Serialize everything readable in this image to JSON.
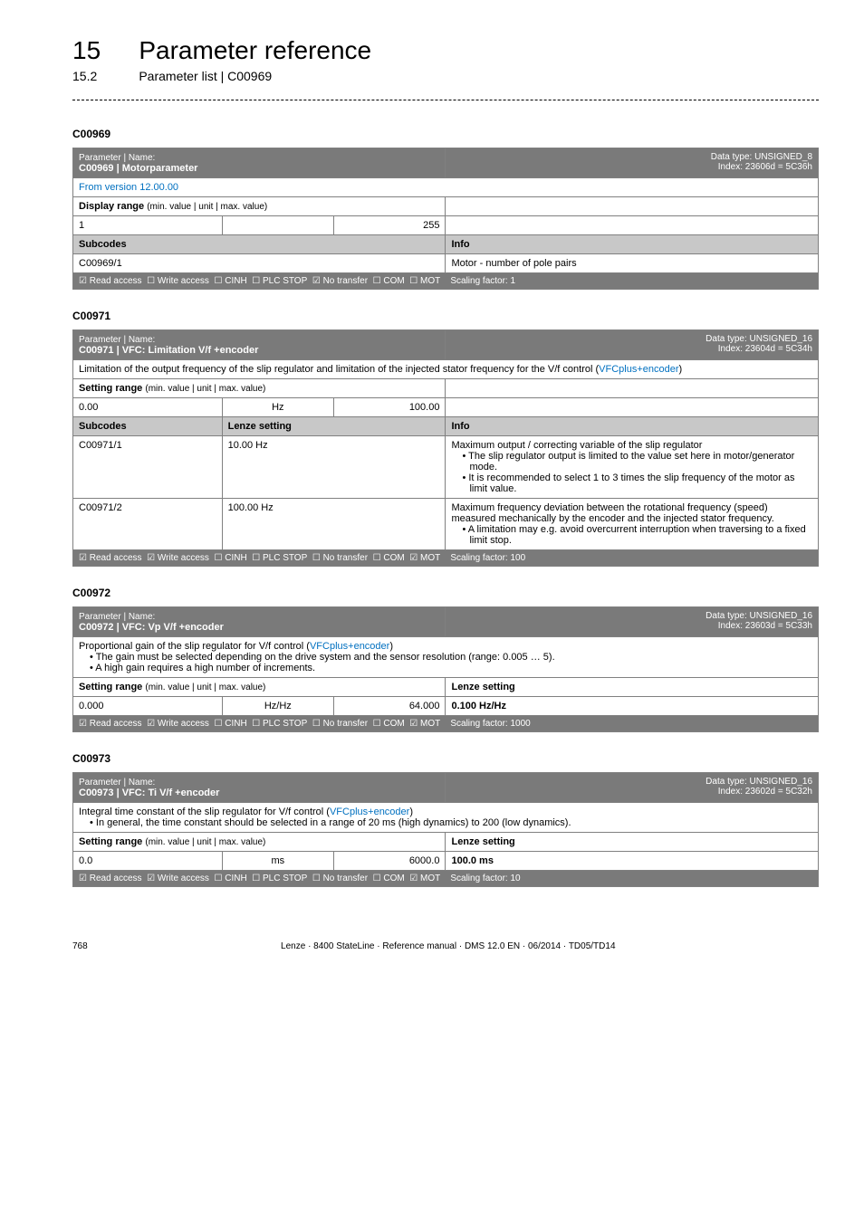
{
  "header": {
    "chapter_number": "15",
    "chapter_title": "Parameter reference",
    "section_number": "15.2",
    "section_title": "Parameter list | C00969"
  },
  "params": [
    {
      "id": "C00969",
      "name_label": "Parameter | Name:",
      "name": "C00969 | Motorparameter",
      "data_type": "Data type: UNSIGNED_8",
      "index": "Index: 23606d = 5C36h",
      "description": null,
      "version_row": "From version 12.00.00",
      "range_type": "display",
      "range_label": "Display range",
      "range_sub": "(min. value | unit | max. value)",
      "range_cols": [
        "1",
        "",
        "255"
      ],
      "lenze_setting_header": null,
      "lenze_setting": null,
      "subcodes_header": {
        "left": "Subcodes",
        "right": "Info"
      },
      "subcodes": [
        {
          "code": "C00969/1",
          "setting": null,
          "info": "Motor - number of pole pairs"
        }
      ],
      "footer": {
        "read": "☑ Read access",
        "write": "☐ Write access",
        "cinh": "☐ CINH",
        "plc": "☐ PLC STOP",
        "notransfer": "☑ No transfer",
        "com": "☐ COM",
        "mot": "☐ MOT",
        "scale": "Scaling factor: 1"
      }
    },
    {
      "id": "C00971",
      "name_label": "Parameter | Name:",
      "name": "C00971 | VFC: Limitation V/f +encoder",
      "data_type": "Data type: UNSIGNED_16",
      "index": "Index: 23604d = 5C34h",
      "description": {
        "pre": "Limitation of the output frequency of the slip regulator and limitation of the injected stator frequency for the V/f control (",
        "link": "VFCplus+encoder",
        "post": ")"
      },
      "version_row": null,
      "range_type": "setting",
      "range_label": "Setting range",
      "range_sub": "(min. value | unit | max. value)",
      "range_cols": [
        "0.00",
        "Hz",
        "100.00"
      ],
      "lenze_setting_header": null,
      "lenze_setting": null,
      "subcodes_header": {
        "left": "Subcodes",
        "mid": "Lenze setting",
        "right": "Info"
      },
      "subcodes": [
        {
          "code": "C00971/1",
          "setting": "10.00 Hz",
          "info_lines": [
            "Maximum output / correcting variable of the slip regulator",
            "• The slip regulator output is limited to the value set here in motor/generator mode.",
            "• It is recommended to select 1 to 3 times the slip frequency of the motor as limit value."
          ]
        },
        {
          "code": "C00971/2",
          "setting": "100.00 Hz",
          "info_lines": [
            "Maximum frequency deviation between the rotational frequency (speed) measured mechanically by the encoder and the injected stator frequency.",
            "• A limitation may e.g. avoid overcurrent interruption when traversing to a fixed limit stop."
          ]
        }
      ],
      "footer": {
        "read": "☑ Read access",
        "write": "☑ Write access",
        "cinh": "☐ CINH",
        "plc": "☐ PLC STOP",
        "notransfer": "☐ No transfer",
        "com": "☐ COM",
        "mot": "☑ MOT",
        "scale": "Scaling factor: 100"
      }
    },
    {
      "id": "C00972",
      "name_label": "Parameter | Name:",
      "name": "C00972 | VFC: Vp V/f +encoder",
      "data_type": "Data type: UNSIGNED_16",
      "index": "Index: 23603d = 5C33h",
      "description": {
        "pre": "Proportional gain of the slip regulator for V/f control (",
        "link": "VFCplus+encoder",
        "post": ")",
        "bullets": [
          "• The gain must be selected depending on the drive system and the sensor resolution (range: 0.005 … 5).",
          "• A high gain requires a high number of increments."
        ]
      },
      "version_row": null,
      "range_type": "setting",
      "range_label": "Setting range",
      "range_sub": "(min. value | unit | max. value)",
      "range_cols": [
        "0.000",
        "Hz/Hz",
        "64.000"
      ],
      "lenze_setting_header": "Lenze setting",
      "lenze_setting": "0.100 Hz/Hz",
      "subcodes_header": null,
      "subcodes": [],
      "footer": {
        "read": "☑ Read access",
        "write": "☑ Write access",
        "cinh": "☐ CINH",
        "plc": "☐ PLC STOP",
        "notransfer": "☐ No transfer",
        "com": "☐ COM",
        "mot": "☑ MOT",
        "scale": "Scaling factor: 1000"
      }
    },
    {
      "id": "C00973",
      "name_label": "Parameter | Name:",
      "name": "C00973 | VFC: Ti V/f +encoder",
      "data_type": "Data type: UNSIGNED_16",
      "index": "Index: 23602d = 5C32h",
      "description": {
        "pre": "Integral time constant of the slip regulator for V/f control (",
        "link": "VFCplus+encoder",
        "post": ")",
        "bullets": [
          "• In general, the time constant should be selected in a range of 20 ms (high dynamics) to 200 (low dynamics)."
        ]
      },
      "version_row": null,
      "range_type": "setting",
      "range_label": "Setting range",
      "range_sub": "(min. value | unit | max. value)",
      "range_cols": [
        "0.0",
        "ms",
        "6000.0"
      ],
      "lenze_setting_header": "Lenze setting",
      "lenze_setting": "100.0 ms",
      "subcodes_header": null,
      "subcodes": [],
      "footer": {
        "read": "☑ Read access",
        "write": "☑ Write access",
        "cinh": "☐ CINH",
        "plc": "☐ PLC STOP",
        "notransfer": "☐ No transfer",
        "com": "☐ COM",
        "mot": "☑ MOT",
        "scale": "Scaling factor: 10"
      }
    }
  ],
  "footer": {
    "page": "768",
    "doc": "Lenze · 8400 StateLine · Reference manual · DMS 12.0 EN · 06/2014 · TD05/TD14"
  }
}
